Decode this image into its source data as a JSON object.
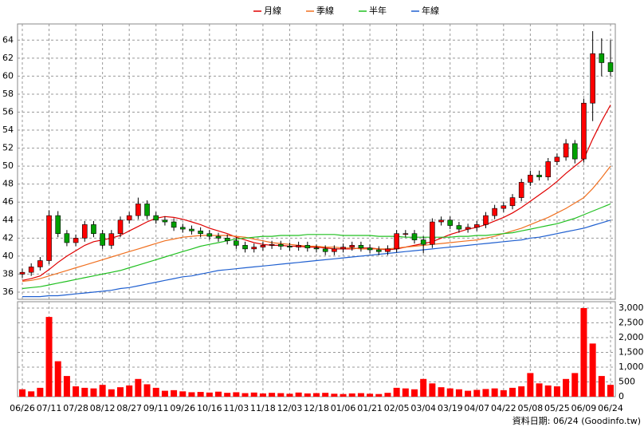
{
  "chart_data": [
    {
      "type": "candlestick",
      "up_color": "#ff0000",
      "down_color": "#00a000",
      "open": [
        38.0,
        38.2,
        38.8,
        39.5,
        44.5,
        42.5,
        41.5,
        42,
        43.5,
        42.5,
        41.2,
        42.5,
        44,
        44.5,
        45.8,
        44.5,
        44,
        43.8,
        43.2,
        43,
        42.8,
        42.5,
        42.2,
        42,
        41.7,
        41.2,
        40.8,
        41,
        41.2,
        41.3,
        41.1,
        41,
        41.2,
        40.9,
        40.8,
        40.5,
        40.8,
        41,
        41.2,
        40.9,
        40.7,
        40.5,
        40.8,
        42.5,
        42.5,
        41.8,
        41.3,
        43.8,
        44,
        43.4,
        43,
        43.2,
        43.5,
        44.5,
        45.3,
        45.6,
        46.5,
        48.2,
        49,
        48.8,
        50.5,
        51,
        52.5,
        50.8,
        57,
        62.5,
        61.5
      ],
      "high": [
        38.6,
        39.2,
        39.9,
        45.1,
        45,
        42.9,
        42.4,
        43.9,
        43.9,
        42.9,
        42.9,
        44.4,
        44.9,
        46.5,
        46.2,
        44.9,
        44.4,
        44.2,
        43.6,
        43.4,
        43.2,
        42.9,
        42.6,
        42.4,
        42.1,
        41.6,
        41.4,
        41.6,
        41.7,
        41.7,
        41.5,
        41.6,
        41.6,
        41.3,
        41.2,
        41.2,
        41.4,
        41.6,
        41.6,
        41.3,
        41.1,
        41.2,
        42.9,
        42.9,
        42.9,
        42.2,
        44.2,
        44.4,
        44.4,
        43.8,
        43.6,
        43.9,
        44.9,
        45.7,
        46,
        46.9,
        48.6,
        49.5,
        49.5,
        50.9,
        51.4,
        53,
        52.9,
        57.5,
        65,
        64.2,
        64
      ],
      "low": [
        37.6,
        37.8,
        38.4,
        39.1,
        42.1,
        41.1,
        41.1,
        41.6,
        42.1,
        40.8,
        40.8,
        42.1,
        43.6,
        44.1,
        44.1,
        43.6,
        43.4,
        42.8,
        42.6,
        42.4,
        42.1,
        41.8,
        41.6,
        41.3,
        40.8,
        40.4,
        40.4,
        40.6,
        40.8,
        40.7,
        40.6,
        40.6,
        40.5,
        40.4,
        40.1,
        40.1,
        40.4,
        40.6,
        40.5,
        40.3,
        40.1,
        40.1,
        40.4,
        42.1,
        41.4,
        40.3,
        40.9,
        43.4,
        43,
        42.6,
        42.6,
        42.8,
        43.1,
        44.1,
        44.9,
        45.2,
        46.1,
        47.8,
        48.4,
        48.4,
        50.1,
        50.6,
        50.3,
        50.4,
        55,
        60,
        60
      ],
      "close": [
        38.2,
        38.8,
        39.5,
        44.5,
        42.5,
        41.5,
        42,
        43.5,
        42.5,
        41.2,
        42.5,
        44,
        44.5,
        45.8,
        44.5,
        44,
        43.8,
        43.2,
        43,
        42.8,
        42.5,
        42.2,
        42,
        41.7,
        41.2,
        40.8,
        41,
        41.2,
        41.3,
        41.1,
        41,
        41.2,
        40.9,
        40.8,
        40.5,
        40.8,
        41,
        41.2,
        40.9,
        40.7,
        40.5,
        40.8,
        42.5,
        42.5,
        41.8,
        41.3,
        43.8,
        44,
        43.4,
        43,
        43.2,
        43.5,
        44.5,
        45.3,
        45.6,
        46.5,
        48.2,
        49,
        48.8,
        50.5,
        51,
        52.5,
        50.8,
        57,
        62.5,
        61.5,
        60.5
      ],
      "series": [
        {
          "name": "月線",
          "color": "#e00000",
          "values": [
            37.3,
            37.5,
            37.8,
            38.5,
            39.3,
            40,
            40.6,
            41.2,
            41.6,
            41.8,
            42,
            42.3,
            42.8,
            43.3,
            43.8,
            44.2,
            44.4,
            44.3,
            44.1,
            43.8,
            43.5,
            43.1,
            42.8,
            42.5,
            42.1,
            41.8,
            41.5,
            41.3,
            41.2,
            41.2,
            41.1,
            41.1,
            41,
            41,
            40.9,
            40.8,
            40.8,
            40.8,
            40.9,
            40.9,
            40.8,
            40.7,
            40.8,
            41,
            41.2,
            41.4,
            41.6,
            42,
            42.4,
            42.7,
            43,
            43.2,
            43.5,
            43.9,
            44.3,
            44.8,
            45.4,
            46.1,
            46.8,
            47.5,
            48.3,
            49.2,
            50,
            50.8,
            53,
            55,
            56.8
          ]
        },
        {
          "name": "季線",
          "color": "#f07020",
          "values": [
            37.2,
            37.3,
            37.5,
            37.8,
            38.1,
            38.4,
            38.7,
            39,
            39.3,
            39.6,
            39.9,
            40.2,
            40.5,
            40.8,
            41.1,
            41.4,
            41.7,
            41.9,
            42.1,
            42.2,
            42.3,
            42.3,
            42.3,
            42.3,
            42.2,
            42.1,
            41.9,
            41.7,
            41.5,
            41.4,
            41.3,
            41.2,
            41.1,
            41.1,
            41,
            41,
            40.9,
            40.9,
            40.8,
            40.8,
            40.8,
            40.8,
            40.9,
            41,
            41.1,
            41.2,
            41.3,
            41.4,
            41.5,
            41.6,
            41.7,
            41.8,
            42,
            42.2,
            42.5,
            42.8,
            43.1,
            43.5,
            43.9,
            44.3,
            44.8,
            45.3,
            45.9,
            46.5,
            47.5,
            48.7,
            50
          ]
        },
        {
          "name": "半年",
          "color": "#20c020",
          "values": [
            36.4,
            36.5,
            36.6,
            36.8,
            37,
            37.2,
            37.4,
            37.6,
            37.8,
            38,
            38.2,
            38.4,
            38.7,
            39,
            39.3,
            39.6,
            39.9,
            40.2,
            40.5,
            40.8,
            41.1,
            41.3,
            41.5,
            41.7,
            41.9,
            42,
            42.1,
            42.2,
            42.2,
            42.3,
            42.3,
            42.3,
            42.4,
            42.4,
            42.4,
            42.4,
            42.3,
            42.3,
            42.3,
            42.3,
            42.2,
            42.2,
            42.2,
            42.1,
            42.1,
            42.1,
            42.1,
            42.1,
            42.1,
            42.2,
            42.2,
            42.3,
            42.3,
            42.4,
            42.5,
            42.6,
            42.8,
            43,
            43.2,
            43.4,
            43.6,
            43.9,
            44.2,
            44.6,
            45,
            45.4,
            45.8
          ]
        },
        {
          "name": "年線",
          "color": "#2060d0",
          "values": [
            35.5,
            35.5,
            35.5,
            35.6,
            35.6,
            35.7,
            35.8,
            35.9,
            36,
            36.1,
            36.2,
            36.4,
            36.5,
            36.7,
            36.9,
            37.1,
            37.3,
            37.5,
            37.7,
            37.8,
            38,
            38.2,
            38.4,
            38.5,
            38.6,
            38.7,
            38.8,
            38.9,
            39,
            39.1,
            39.2,
            39.3,
            39.4,
            39.5,
            39.6,
            39.7,
            39.8,
            39.9,
            40,
            40.1,
            40.2,
            40.3,
            40.4,
            40.5,
            40.6,
            40.7,
            40.8,
            40.9,
            41,
            41.1,
            41.2,
            41.3,
            41.4,
            41.5,
            41.6,
            41.7,
            41.8,
            42,
            42.1,
            42.3,
            42.5,
            42.7,
            42.9,
            43.1,
            43.4,
            43.7,
            44
          ]
        }
      ],
      "ylim": [
        35.2,
        65.8
      ],
      "yticks": [
        36,
        38,
        40,
        42,
        44,
        46,
        48,
        50,
        52,
        54,
        56,
        58,
        60,
        62,
        64
      ],
      "grid": true,
      "legend": "top"
    },
    {
      "type": "bar",
      "color": "#ff0000",
      "categories": [
        "06/26",
        null,
        null,
        "07/11",
        null,
        null,
        "07/28",
        null,
        null,
        "08/12",
        null,
        null,
        "08/27",
        null,
        null,
        "09/11",
        null,
        null,
        "09/26",
        null,
        null,
        "10/16",
        null,
        null,
        "11/03",
        null,
        null,
        "11/18",
        null,
        null,
        "12/03",
        null,
        null,
        "12/18",
        null,
        null,
        "01/06",
        null,
        null,
        "01/21",
        null,
        null,
        "02/05",
        null,
        null,
        "03/04",
        null,
        null,
        "03/19",
        null,
        null,
        "04/07",
        null,
        null,
        "04/22",
        null,
        null,
        "05/08",
        null,
        null,
        "05/25",
        null,
        null,
        "06/09",
        null,
        null,
        "06/24"
      ],
      "values": [
        250,
        180,
        300,
        2700,
        1200,
        700,
        350,
        300,
        280,
        400,
        250,
        320,
        380,
        600,
        420,
        300,
        200,
        220,
        180,
        150,
        160,
        140,
        170,
        130,
        150,
        120,
        140,
        110,
        130,
        120,
        100,
        140,
        110,
        120,
        130,
        100,
        90,
        110,
        120,
        100,
        90,
        130,
        300,
        280,
        250,
        600,
        450,
        320,
        280,
        250,
        200,
        230,
        260,
        280,
        220,
        300,
        350,
        800,
        450,
        380,
        350,
        600,
        800,
        3000,
        1800,
        700,
        400
      ],
      "ylim": [
        0,
        3216
      ],
      "yticks": [
        0,
        500,
        {
          "value": 1000,
          "label": "1,000"
        },
        {
          "value": 1500,
          "label": "1,500"
        },
        {
          "value": 2000,
          "label": "2,000"
        },
        {
          "value": 2500,
          "label": "2,500"
        },
        {
          "value": 3000,
          "label": "3,000"
        }
      ],
      "grid": true,
      "note": "資料日期: 06/24 (Goodinfo.tw)"
    }
  ]
}
